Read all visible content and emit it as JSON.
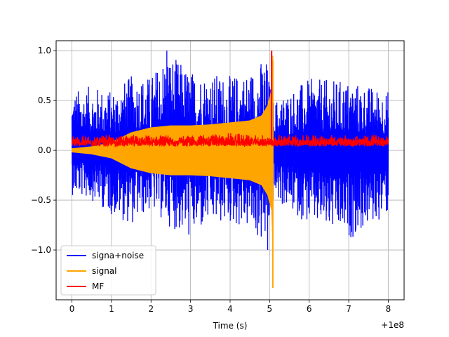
{
  "chart_data": {
    "type": "line",
    "title": "",
    "xlabel": "Time (s)",
    "ylabel": "",
    "x_offset_label": "+1e8",
    "xlim": [
      -0.4,
      8.4
    ],
    "ylim": [
      -1.5,
      1.1
    ],
    "x_ticks": [
      0,
      1,
      2,
      3,
      4,
      5,
      6,
      7,
      8
    ],
    "x_tick_labels": [
      "0",
      "1",
      "2",
      "3",
      "4",
      "5",
      "6",
      "7",
      "8"
    ],
    "y_ticks": [
      1.0,
      0.5,
      0.0,
      -0.5,
      -1.0
    ],
    "y_tick_labels": [
      "1.0",
      "0.5",
      "0.0",
      "−0.5",
      "−1.0"
    ],
    "grid": true,
    "legend_position": "lower-left",
    "series": [
      {
        "name": "signa+noise",
        "color": "#0000ff",
        "envelope": {
          "x": [
            0.0,
            0.5,
            1.0,
            1.5,
            2.0,
            2.4,
            3.0,
            3.5,
            4.0,
            4.5,
            4.9,
            5.05,
            5.1,
            6.0,
            7.0,
            8.0
          ],
          "upper": [
            0.6,
            0.65,
            0.6,
            0.75,
            0.75,
            1.0,
            0.8,
            0.78,
            0.75,
            0.8,
            0.95,
            0.6,
            0.5,
            0.72,
            0.7,
            0.6
          ],
          "lower": [
            -0.45,
            -0.5,
            -0.65,
            -0.75,
            -0.6,
            -0.75,
            -0.9,
            -0.75,
            -0.75,
            -0.8,
            -1.0,
            -0.6,
            -0.5,
            -0.75,
            -0.9,
            -0.65
          ],
          "peak_max": 1.0,
          "peak_min": -1.0
        }
      },
      {
        "name": "signal",
        "color": "#ffa500",
        "envelope": {
          "x": [
            0.0,
            0.5,
            1.0,
            1.5,
            2.0,
            2.5,
            3.0,
            3.5,
            4.0,
            4.5,
            4.8,
            4.95,
            5.05,
            5.08
          ],
          "amplitude": [
            0.02,
            0.04,
            0.08,
            0.18,
            0.23,
            0.25,
            0.25,
            0.26,
            0.28,
            0.3,
            0.35,
            0.45,
            0.6,
            0.95
          ],
          "final_spike_max": 1.0,
          "final_spike_min": -1.38,
          "end_x": 5.08
        }
      },
      {
        "name": "MF",
        "color": "#ff0000",
        "envelope": {
          "x": [
            0.0,
            1.0,
            2.0,
            3.0,
            4.0,
            5.0,
            6.0,
            7.0,
            8.0
          ],
          "upper": [
            0.15,
            0.17,
            0.16,
            0.17,
            0.18,
            0.16,
            0.17,
            0.16,
            0.17
          ],
          "lower": [
            0.0,
            0.0,
            0.0,
            0.0,
            0.0,
            0.0,
            0.0,
            0.0,
            0.0
          ],
          "peak_x": 5.05,
          "peak_value": 1.0
        }
      }
    ]
  }
}
